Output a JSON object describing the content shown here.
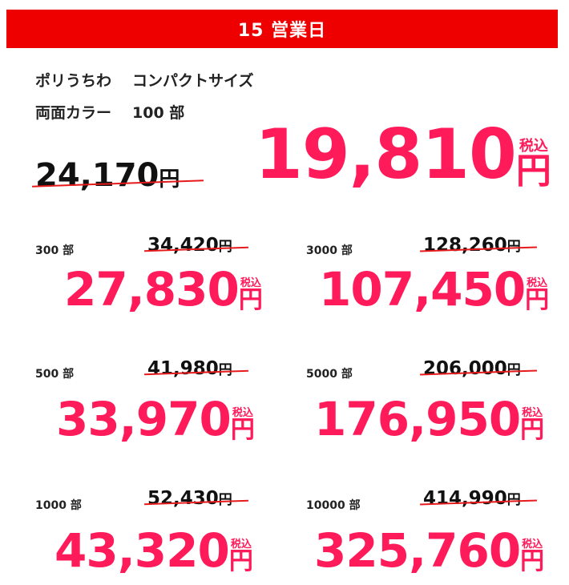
{
  "banner": {
    "label": "15 営業日"
  },
  "product": {
    "name": "ポリうちわ",
    "size": "コンパクトサイズ",
    "print": "両面カラー",
    "quantity": "100 部"
  },
  "main_price": {
    "original": "24,170",
    "sale": "19,810",
    "yen": "円",
    "tax": "税込"
  },
  "tiers": [
    {
      "qty": "300 部",
      "original": "34,420",
      "sale": "27,830"
    },
    {
      "qty": "3000 部",
      "original": "128,260",
      "sale": "107,450"
    },
    {
      "qty": "500 部",
      "original": "41,980",
      "sale": "33,970"
    },
    {
      "qty": "5000 部",
      "original": "206,000",
      "sale": "176,950"
    },
    {
      "qty": "1000 部",
      "original": "52,430",
      "sale": "43,320"
    },
    {
      "qty": "10000 部",
      "original": "414,990",
      "sale": "325,760"
    }
  ],
  "colors": {
    "banner": "#ee0000",
    "sale": "#ff1a5a",
    "strike": "#e61a1a"
  }
}
